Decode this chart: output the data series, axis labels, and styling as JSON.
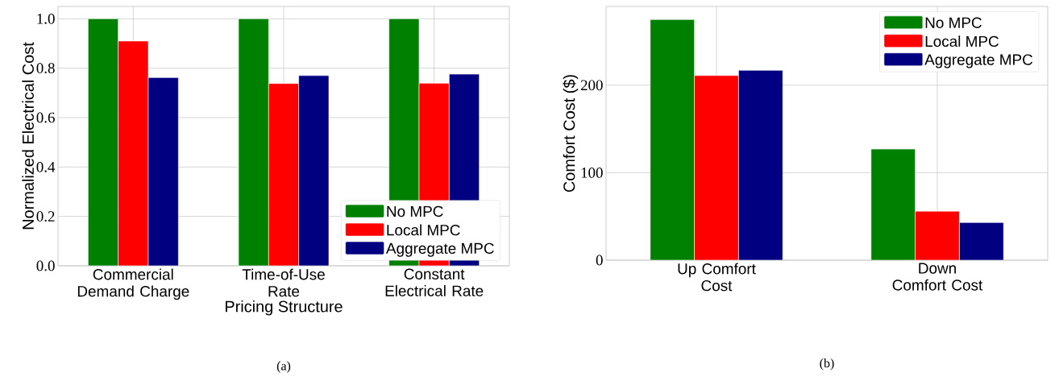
{
  "chart_data": [
    {
      "type": "bar",
      "xlabel": "Pricing Structure",
      "ylabel": "Normalized Electrical Cost",
      "categories": [
        "Commercial Demand Charge",
        "Time-of-Use Rate",
        "Constant Electrical Rate"
      ],
      "series": [
        {
          "name": "No MPC",
          "color": "#008000",
          "values": [
            1.0,
            1.0,
            1.0
          ]
        },
        {
          "name": "Local MPC",
          "color": "#ff0000",
          "values": [
            0.91,
            0.738,
            0.739
          ]
        },
        {
          "name": "Aggregate MPC",
          "color": "#000080",
          "values": [
            0.762,
            0.77,
            0.776
          ]
        }
      ],
      "ylim": [
        0,
        1.05
      ],
      "yticks": [
        {
          "value": 0,
          "label": "0.0"
        },
        0.2,
        0.4,
        0.6,
        0.8,
        {
          "value": 1,
          "label": "1.0"
        }
      ],
      "grid": true,
      "legend": "bottom right",
      "annotations": [
        "(a)"
      ]
    },
    {
      "type": "bar",
      "ylabel": "Comfort Cost ($)",
      "categories": [
        "Up Comfort Cost",
        "Down Comfort Cost"
      ],
      "series": [
        {
          "name": "No MPC",
          "color": "#008000",
          "values": [
            275,
            127
          ]
        },
        {
          "name": "Local MPC",
          "color": "#ff0000",
          "values": [
            211,
            56
          ]
        },
        {
          "name": "Aggregate MPC",
          "color": "#000080",
          "values": [
            217,
            43
          ]
        }
      ],
      "ylim": [
        0,
        290
      ],
      "yticks": [
        0,
        100,
        200
      ],
      "grid": true,
      "legend": "top right",
      "annotations": [
        "(b)"
      ]
    }
  ]
}
